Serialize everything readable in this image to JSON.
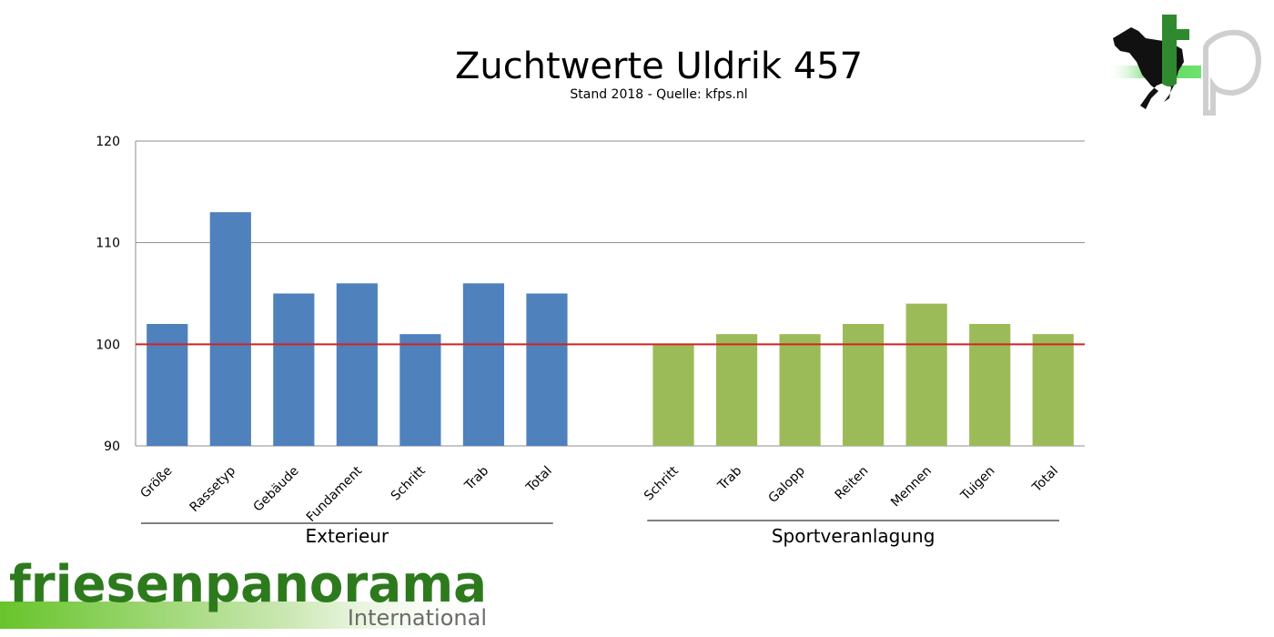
{
  "chart_data": {
    "type": "bar",
    "title": "Zuchtwerte Uldrik 457",
    "subtitle": "Stand 2018 - Quelle: kfps.nl",
    "ylim": [
      90,
      120
    ],
    "yticks": [
      90,
      100,
      110,
      120
    ],
    "reference_line": {
      "value": 100,
      "color": "#d62222"
    },
    "grid": true,
    "groups": [
      {
        "name": "Exterieur",
        "color": "#4f81bd",
        "categories": [
          "Größe",
          "Rassetyp",
          "Gebäude",
          "Fundament",
          "Schritt",
          "Trab",
          "Total"
        ],
        "values": [
          102,
          113,
          105,
          106,
          101,
          106,
          105
        ]
      },
      {
        "name": "Sportveranlagung",
        "color": "#9bbb59",
        "categories": [
          "Schritt",
          "Trab",
          "Galopp",
          "Reiten",
          "Mennen",
          "Tuigen",
          "Total"
        ],
        "values": [
          100,
          101,
          101,
          102,
          104,
          102,
          101
        ]
      }
    ]
  },
  "logos": {
    "top_right": "kfp",
    "bottom_left_main": "friesenpanorama",
    "bottom_left_sub": "International",
    "icon": "horse-icon"
  }
}
